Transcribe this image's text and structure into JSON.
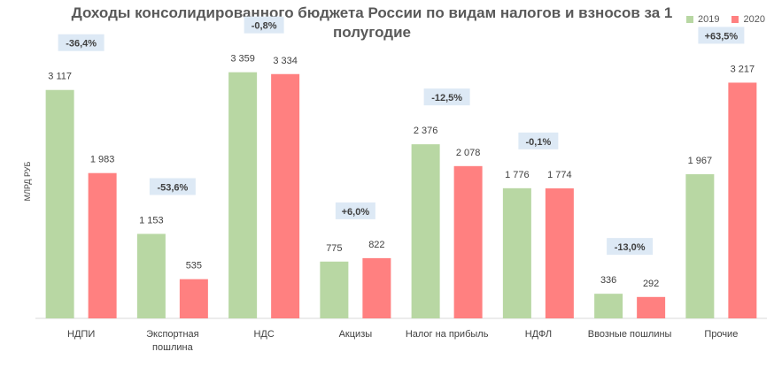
{
  "title": "Доходы консолидированного бюджета России по видам налогов и взносов за 1 полугодие",
  "colors": {
    "2019": "#b8d7a3",
    "2020": "#ff8080",
    "badge": "#dde9f5"
  },
  "chart_data": {
    "type": "bar",
    "title": "Доходы консолидированного бюджета России по видам налогов и взносов за 1 полугодие",
    "ylabel": "МЛРД РУБ",
    "xlabel": "",
    "ylim": [
      0,
      3500
    ],
    "grid": false,
    "legend_position": "top-right",
    "categories": [
      "НДПИ",
      "Экспортная пошлина",
      "НДС",
      "Акцизы",
      "Налог на прибыль",
      "НДФЛ",
      "Ввозные пошлины",
      "Прочие"
    ],
    "category_lines": [
      [
        "НДПИ"
      ],
      [
        "Экспортная",
        "пошлина"
      ],
      [
        "НДС"
      ],
      [
        "Акцизы"
      ],
      [
        "Налог на прибыль"
      ],
      [
        "НДФЛ"
      ],
      [
        "Ввозные пошлины"
      ],
      [
        "Прочие"
      ]
    ],
    "series": [
      {
        "name": "2019",
        "values": [
          3117,
          1153,
          3359,
          775,
          2376,
          1776,
          336,
          1967
        ],
        "labels": [
          "3 117",
          "1 153",
          "3 359",
          "775",
          "2 376",
          "1 776",
          "336",
          "1 967"
        ]
      },
      {
        "name": "2020",
        "values": [
          1983,
          535,
          3334,
          822,
          2078,
          1774,
          292,
          3217
        ],
        "labels": [
          "1 983",
          "535",
          "3 334",
          "822",
          "2 078",
          "1 774",
          "292",
          "3 217"
        ]
      }
    ],
    "changes": [
      "-36,4%",
      "-53,6%",
      "-0,8%",
      "+6,0%",
      "-12,5%",
      "-0,1%",
      "-13,0%",
      "+63,5%"
    ]
  }
}
